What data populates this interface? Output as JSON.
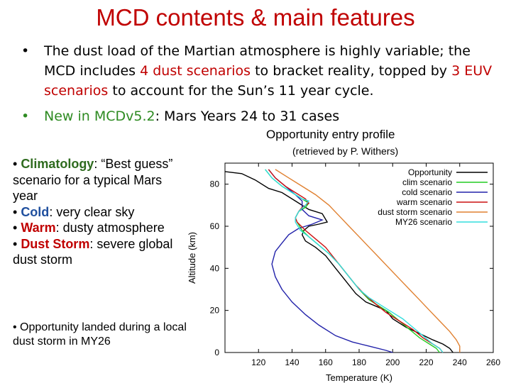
{
  "slide": {
    "title": "MCD contents & main features"
  },
  "bullet1": {
    "dot": "•",
    "part1": "The dust load of the Martian atmosphere is highly variable; the MCD includes ",
    "part2": "4 dust scenarios",
    "part3": " to bracket reality, topped by  ",
    "part4": "3 EUV scenarios",
    "part5": " to account for the Sun’s 11 year cycle."
  },
  "bullet2": {
    "dot": "•",
    "part1": "New in MCDv5.2",
    "part2": ": Mars Years 24 to 31 cases"
  },
  "plot_heading": {
    "title": "Opportunity entry profile",
    "subtitle": "(retrieved by P. Withers)"
  },
  "scenarios": {
    "b1": "• ",
    "k1": "Climatology",
    "t1": ": “Best guess” scenario for a typical Mars year",
    "b2": "• ",
    "k2": "Cold",
    "t2": ": very clear sky",
    "b3": "• ",
    "k3": "Warm",
    "t3": ": dusty atmosphere",
    "b4": "• ",
    "k4": "Dust Storm",
    "t4": ": severe global dust storm"
  },
  "note": {
    "text": "• Opportunity landed during a local dust storm in MY26"
  },
  "chart_data": {
    "type": "line",
    "title": "",
    "xlabel": "Temperature (K)",
    "ylabel": "Altitude (km)",
    "xlim": [
      100,
      260
    ],
    "ylim": [
      0,
      90
    ],
    "xticks": [
      120,
      140,
      160,
      180,
      200,
      220,
      240,
      260
    ],
    "yticks": [
      0,
      20,
      40,
      60,
      80
    ],
    "legend_position": "top-right",
    "grid": false,
    "series": [
      {
        "name": "Opportunity",
        "color": "#000000",
        "points": [
          [
            100,
            86
          ],
          [
            110,
            85
          ],
          [
            118,
            82
          ],
          [
            126,
            78
          ],
          [
            134,
            76
          ],
          [
            142,
            72
          ],
          [
            150,
            68
          ],
          [
            158,
            66
          ],
          [
            161,
            62
          ],
          [
            156,
            61
          ],
          [
            150,
            60
          ],
          [
            147,
            58
          ],
          [
            146,
            56
          ],
          [
            148,
            53
          ],
          [
            154,
            50
          ],
          [
            160,
            46
          ],
          [
            166,
            40
          ],
          [
            172,
            34
          ],
          [
            178,
            28
          ],
          [
            184,
            24
          ],
          [
            190,
            22
          ],
          [
            196,
            20
          ],
          [
            200,
            16
          ],
          [
            208,
            12
          ],
          [
            216,
            9
          ],
          [
            224,
            6
          ],
          [
            230,
            4
          ],
          [
            234,
            2
          ],
          [
            236,
            0
          ]
        ]
      },
      {
        "name": "clim scenario",
        "color": "#22cc22",
        "points": [
          [
            124,
            87
          ],
          [
            128,
            83
          ],
          [
            134,
            79
          ],
          [
            140,
            76
          ],
          [
            146,
            73
          ],
          [
            150,
            71
          ],
          [
            148,
            69
          ],
          [
            144,
            67
          ],
          [
            142,
            64
          ],
          [
            143,
            62
          ],
          [
            146,
            58
          ],
          [
            150,
            55
          ],
          [
            156,
            51
          ],
          [
            162,
            47
          ],
          [
            168,
            42
          ],
          [
            174,
            36
          ],
          [
            180,
            30
          ],
          [
            186,
            25
          ],
          [
            192,
            22
          ],
          [
            198,
            19
          ],
          [
            204,
            15
          ],
          [
            210,
            11
          ],
          [
            216,
            7
          ],
          [
            222,
            4
          ],
          [
            226,
            2
          ],
          [
            228,
            0
          ]
        ]
      },
      {
        "name": "cold scenario",
        "color": "#2222aa",
        "points": [
          [
            126,
            87
          ],
          [
            130,
            83
          ],
          [
            136,
            79
          ],
          [
            142,
            75
          ],
          [
            146,
            72
          ],
          [
            146,
            68
          ],
          [
            150,
            65
          ],
          [
            158,
            63
          ],
          [
            152,
            61
          ],
          [
            144,
            59
          ],
          [
            138,
            56
          ],
          [
            134,
            52
          ],
          [
            130,
            48
          ],
          [
            128,
            42
          ],
          [
            130,
            36
          ],
          [
            134,
            30
          ],
          [
            140,
            24
          ],
          [
            148,
            18
          ],
          [
            156,
            13
          ],
          [
            166,
            8
          ],
          [
            176,
            5
          ],
          [
            186,
            3
          ],
          [
            196,
            1
          ],
          [
            200,
            0
          ]
        ]
      },
      {
        "name": "warm scenario",
        "color": "#cc1111",
        "points": [
          [
            126,
            87
          ],
          [
            130,
            83
          ],
          [
            136,
            79
          ],
          [
            142,
            76
          ],
          [
            148,
            73
          ],
          [
            150,
            71
          ],
          [
            146,
            69
          ],
          [
            144,
            67
          ],
          [
            142,
            64
          ],
          [
            143,
            62
          ],
          [
            148,
            58
          ],
          [
            154,
            54
          ],
          [
            160,
            50
          ],
          [
            166,
            44
          ],
          [
            172,
            38
          ],
          [
            178,
            32
          ],
          [
            184,
            27
          ],
          [
            190,
            23
          ],
          [
            196,
            19
          ],
          [
            204,
            15
          ],
          [
            212,
            11
          ],
          [
            218,
            7
          ],
          [
            224,
            4
          ],
          [
            228,
            2
          ],
          [
            230,
            0
          ]
        ]
      },
      {
        "name": "dust storm scenario",
        "color": "#e08030",
        "points": [
          [
            130,
            87
          ],
          [
            138,
            83
          ],
          [
            146,
            79
          ],
          [
            154,
            75
          ],
          [
            162,
            70
          ],
          [
            168,
            65
          ],
          [
            174,
            60
          ],
          [
            180,
            55
          ],
          [
            186,
            50
          ],
          [
            192,
            45
          ],
          [
            198,
            40
          ],
          [
            204,
            35
          ],
          [
            210,
            30
          ],
          [
            216,
            25
          ],
          [
            222,
            20
          ],
          [
            228,
            15
          ],
          [
            234,
            10
          ],
          [
            238,
            6
          ],
          [
            240,
            3
          ],
          [
            240,
            0
          ]
        ]
      },
      {
        "name": "MY26 scenario",
        "color": "#33dddd",
        "points": [
          [
            124,
            87
          ],
          [
            128,
            83
          ],
          [
            134,
            79
          ],
          [
            140,
            76
          ],
          [
            146,
            73
          ],
          [
            150,
            72
          ],
          [
            148,
            70
          ],
          [
            144,
            67
          ],
          [
            142,
            64
          ],
          [
            142,
            62
          ],
          [
            145,
            58
          ],
          [
            150,
            55
          ],
          [
            156,
            51
          ],
          [
            162,
            47
          ],
          [
            168,
            42
          ],
          [
            174,
            36
          ],
          [
            180,
            30
          ],
          [
            186,
            26
          ],
          [
            192,
            23
          ],
          [
            198,
            20
          ],
          [
            206,
            16
          ],
          [
            212,
            12
          ],
          [
            218,
            8
          ],
          [
            224,
            4
          ],
          [
            228,
            2
          ],
          [
            230,
            0
          ]
        ]
      }
    ]
  }
}
